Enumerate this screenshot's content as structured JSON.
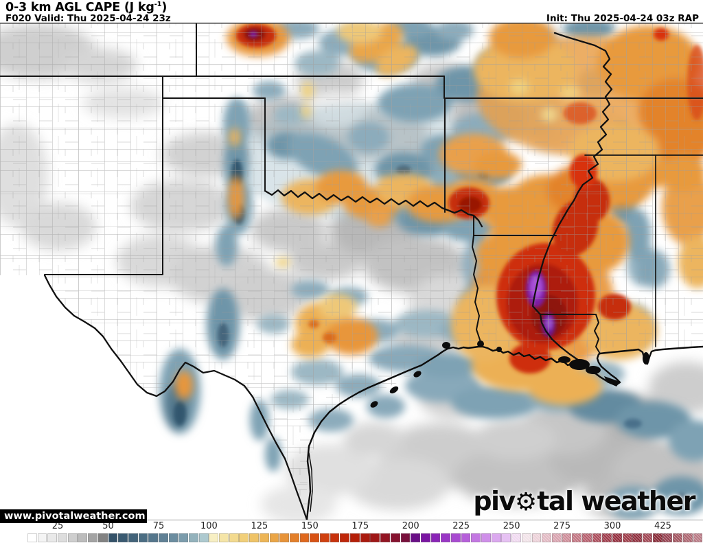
{
  "header": {
    "title_prefix": "0-3 km AGL CAPE (J kg",
    "title_sup": "-1",
    "title_suffix": ")",
    "valid": "F020 Valid: Thu 2025-04-24 23z",
    "init": "Init: Thu 2025-04-24 03z RAP"
  },
  "watermark": "www.pivotalweather.com",
  "logo": {
    "part1": "piv",
    "gear": "⚙",
    "part2": "tal weather"
  },
  "colorbar": {
    "labels": [
      {
        "text": "25",
        "cells": 3
      },
      {
        "text": "50",
        "cells": 8
      },
      {
        "text": "75",
        "cells": 13
      },
      {
        "text": "100",
        "cells": 18
      },
      {
        "text": "125",
        "cells": 23
      },
      {
        "text": "150",
        "cells": 28
      },
      {
        "text": "175",
        "cells": 33
      },
      {
        "text": "200",
        "cells": 38
      },
      {
        "text": "225",
        "cells": 43
      },
      {
        "text": "250",
        "cells": 48
      },
      {
        "text": "275",
        "cells": 53
      },
      {
        "text": "300",
        "cells": 58
      },
      {
        "text": "425",
        "cells": 63
      }
    ],
    "cells": [
      "#ffffff",
      "#f4f4f4",
      "#e9e9e9",
      "#dddddd",
      "#cecece",
      "#bcbcbc",
      "#a3a3a3",
      "#828282",
      "#345269",
      "#3a5a71",
      "#42637a",
      "#4b6d83",
      "#54768c",
      "#5f8095",
      "#6b8da0",
      "#7b9cac",
      "#93b2bc",
      "#adc9cf",
      "#f7efc3",
      "#f5e5a7",
      "#f3da8e",
      "#f1cf79",
      "#efc366",
      "#edb556",
      "#eaa546",
      "#e79338",
      "#e37f2a",
      "#df681d",
      "#d85214",
      "#d0400f",
      "#c8320c",
      "#bf270a",
      "#b51f08",
      "#aa1a0e",
      "#9f1717",
      "#931523",
      "#86122f",
      "#78103c",
      "#690e86",
      "#7a15a2",
      "#8a24b7",
      "#9936c5",
      "#a84ad1",
      "#b65fda",
      "#c377e2",
      "#cf8fe9",
      "#dba8ef",
      "#e6c1f3",
      "#f0d9f0",
      "#f2e3e9",
      "#ecd1d8",
      "#e2bac3",
      "#d8a2ae",
      "#cd8b97",
      "#c27481",
      "#b65d6c",
      "#aa4a59",
      "#9e3848",
      "#932c3c",
      "#9d3a47",
      "#8f2d3c",
      "#a04452",
      "#882936",
      "#964150",
      "#a2545f",
      "#ad6570",
      "#b87883"
    ]
  }
}
